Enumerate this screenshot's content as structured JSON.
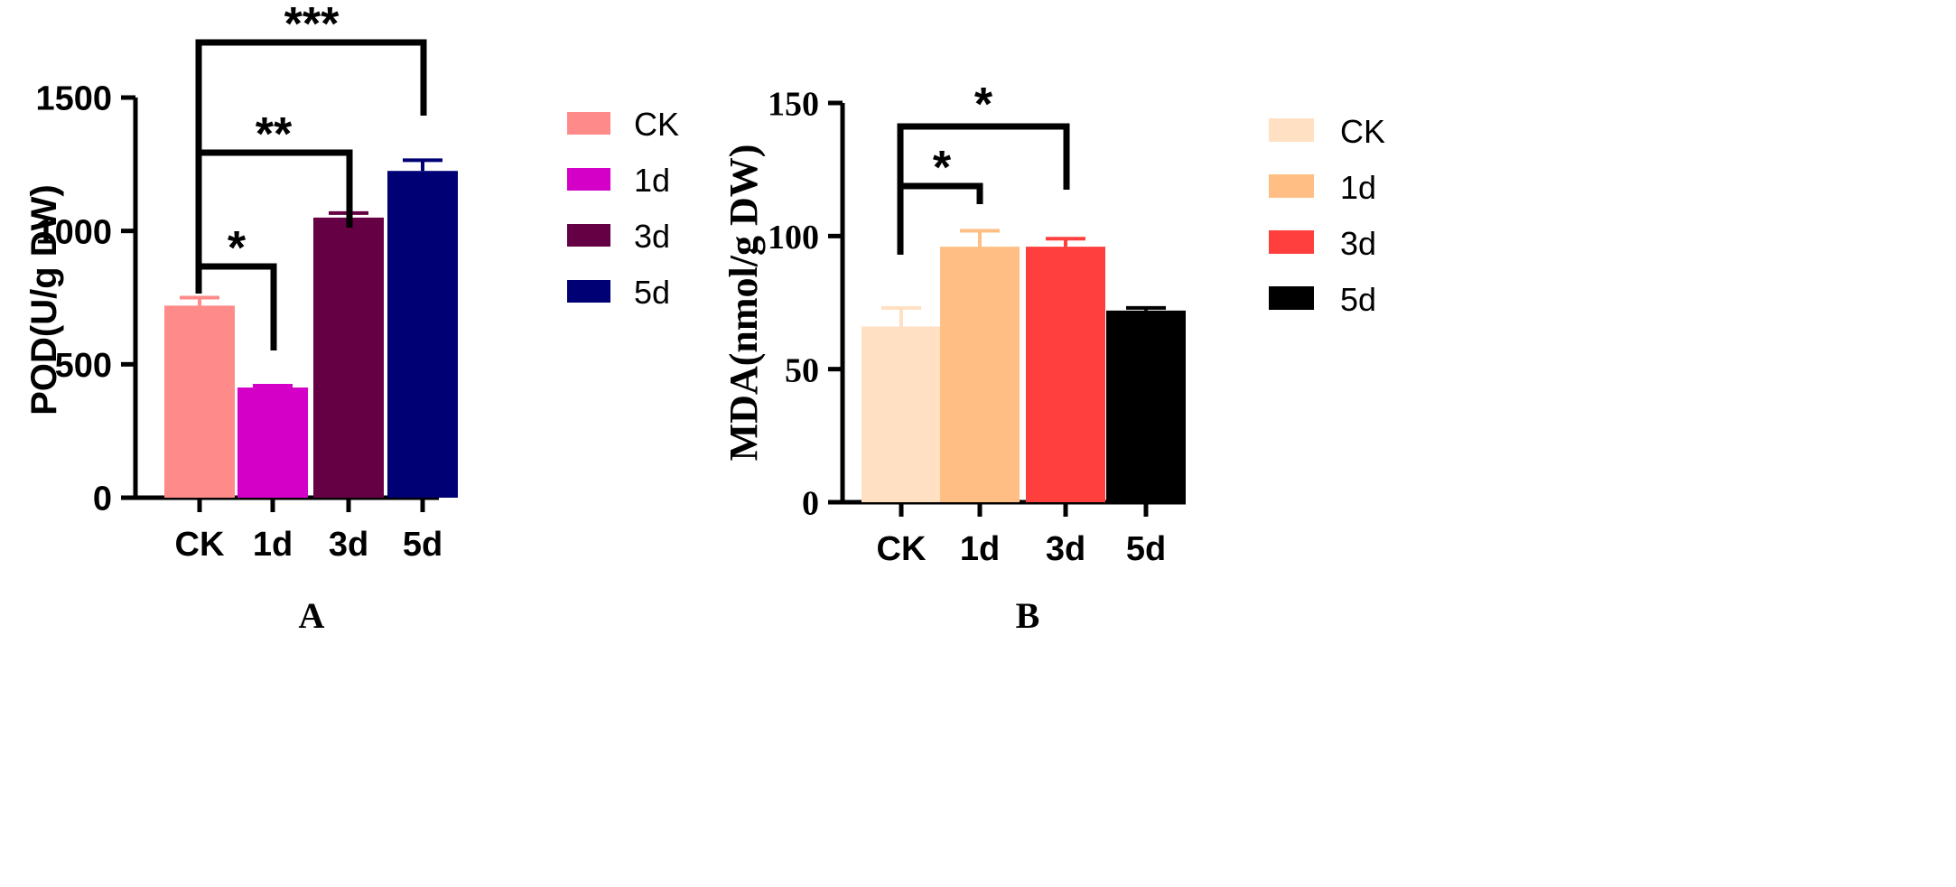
{
  "chart_data": [
    {
      "type": "bar",
      "panel_label": "A",
      "ylabel": "POD(U/g DW)",
      "categories": [
        "CK",
        "1d",
        "3d",
        "5d"
      ],
      "values": [
        720,
        413,
        1050,
        1225
      ],
      "errors": [
        30,
        7,
        17,
        40
      ],
      "colors": [
        "#FF8A8A",
        "#D400C8",
        "#660044",
        "#000075"
      ],
      "ylim": [
        0,
        1500
      ],
      "yticks": [
        0,
        500,
        1000,
        1500
      ],
      "legend": [
        {
          "label": "CK",
          "color": "#FF8A8A"
        },
        {
          "label": "1d",
          "color": "#D400C8"
        },
        {
          "label": "3d",
          "color": "#660044"
        },
        {
          "label": "5d",
          "color": "#000075"
        }
      ],
      "significance": [
        {
          "from": "CK",
          "to": "1d",
          "label": "*"
        },
        {
          "from": "CK",
          "to": "3d",
          "label": "**"
        },
        {
          "from": "CK",
          "to": "5d",
          "label": "***"
        }
      ]
    },
    {
      "type": "bar",
      "panel_label": "B",
      "ylabel": "MDA(nmol/g DW)",
      "categories": [
        "CK",
        "1d",
        "3d",
        "5d"
      ],
      "values": [
        66,
        96,
        96,
        72
      ],
      "errors": [
        7,
        6,
        3,
        1
      ],
      "colors": [
        "#FFE0C2",
        "#FFBF84",
        "#FF3E3E",
        "#000000"
      ],
      "ylim": [
        0,
        150
      ],
      "yticks": [
        0,
        50,
        100,
        150
      ],
      "legend": [
        {
          "label": "CK",
          "color": "#FFE0C2"
        },
        {
          "label": "1d",
          "color": "#FFBF84"
        },
        {
          "label": "3d",
          "color": "#FF3E3E"
        },
        {
          "label": "5d",
          "color": "#000000"
        }
      ],
      "significance": [
        {
          "from": "CK",
          "to": "1d",
          "label": "*"
        },
        {
          "from": "CK",
          "to": "3d",
          "label": "*"
        }
      ]
    }
  ]
}
